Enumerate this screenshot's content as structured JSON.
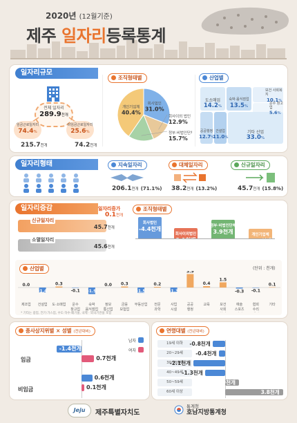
{
  "header": {
    "year": "2020년",
    "basis": "(12월기준)",
    "title_a": "제주 ",
    "title_b": "일자리",
    "title_c": "등록통계"
  },
  "scale": {
    "heading": "일자리규모",
    "total_label": "전체 일자리",
    "total_value": "289.9",
    "total_unit": "천개",
    "reg_label": "임금근로일자리",
    "reg_value": "74.4",
    "reg_unit": "%",
    "nonreg_label": "비임금근로일자리",
    "nonreg_value": "25.6",
    "nonreg_unit": "%",
    "left_total": "215.7",
    "left_unit": "천개",
    "right_total": "74.2",
    "right_unit": "천개"
  },
  "org": {
    "heading": "조직형태별",
    "slices": [
      {
        "label": "회사이외 법인",
        "value": "12.9",
        "unit": "%",
        "color": "#e8c99a",
        "pct": 12.9
      },
      {
        "label": "정부·비법인단체",
        "value": "15.7",
        "unit": "%",
        "color": "#a7d2a6",
        "pct": 15.7
      },
      {
        "label": "개인기업체",
        "value": "40.4",
        "unit": "%",
        "color": "#f4c978",
        "pct": 40.4
      },
      {
        "label": "회사법인",
        "value": "31.0",
        "unit": "%",
        "color": "#7fb1e8",
        "pct": 31.0
      }
    ]
  },
  "industry": {
    "heading": "산업별",
    "items": [
      {
        "label": "도소매업",
        "value": "14.2",
        "unit": "%"
      },
      {
        "label": "숙박·음식점업",
        "value": "13.5",
        "unit": "%"
      },
      {
        "label": "보건 사회복지",
        "value": "10.1",
        "unit": "%"
      },
      {
        "label": "운수 창고업",
        "value": "5.6",
        "unit": "%"
      },
      {
        "label": "공공행정",
        "value": "12.7",
        "unit": "%"
      },
      {
        "label": "건설업",
        "value": "11.0",
        "unit": "%"
      },
      {
        "label": "기타 산업",
        "value": "33.0",
        "unit": "%"
      }
    ]
  },
  "types": {
    "heading": "일자리형태",
    "items": [
      {
        "label": "지속일자리",
        "value": "206.1",
        "unit": "천개",
        "share": "(71.1%)"
      },
      {
        "label": "대체일자리",
        "value": "38.2",
        "unit": "천개",
        "share": "(13.2%)"
      },
      {
        "label": "신규일자리",
        "value": "45.7",
        "unit": "천개",
        "share": "(15.8%)"
      }
    ]
  },
  "change": {
    "heading": "일자리증감",
    "net_label": "일자리증가",
    "net_value": "0.1",
    "net_unit": "천개",
    "new_label": "신규일자리",
    "new_value": "45.7",
    "new_unit": "천개",
    "gone_label": "소멸일자리",
    "gone_value": "45.6",
    "gone_unit": "천개",
    "org_heading": "조직형태별",
    "org": [
      {
        "label": "회사법인",
        "value": "-4.4",
        "unit": "천개",
        "v": -4.4
      },
      {
        "label": "회사이외법인",
        "value": "2.1",
        "unit": "천개",
        "v": 2.1
      },
      {
        "label": "정부·비법인단체",
        "value": "3.9",
        "unit": "천개",
        "v": 3.9
      },
      {
        "label": "개인기업체",
        "value": "-1.4",
        "unit": "천개",
        "v": -1.4
      }
    ]
  },
  "industry_change": {
    "heading": "산업별",
    "unit_note": "(단위 : 천개)",
    "footnote": "* 기타는 광업, 전기·가스업, 수도·하수·폐기물, 국제 · 외국기관을 포함",
    "chart_data": {
      "type": "bar",
      "categories": [
        "제조업",
        "건설업",
        "도·소매업",
        "운수 창고업",
        "숙박 음식점업",
        "정보 통신업",
        "금융 보험업",
        "부동산업",
        "전문 과학 기술",
        "사업 시설",
        "공공 행정",
        "교육",
        "보건 사회 복지",
        "예술 스포츠 여가",
        "협회 수리 개인",
        "기타"
      ],
      "values": [
        0.0,
        -1.4,
        0.3,
        -0.1,
        -1.9,
        0.0,
        0.3,
        -1.5,
        0.2,
        -1.3,
        3.9,
        0.4,
        1.5,
        -0.3,
        -0.1,
        0.1
      ],
      "labels": [
        "0.0",
        "-1.4",
        "0.3",
        "-0.1",
        "-1.9",
        "0.0",
        "0.3",
        "-1.5",
        "0.2",
        "-1.3",
        "3.9",
        "0.4",
        "1.5",
        "-0.3",
        "-0.1",
        "0.1"
      ]
    }
  },
  "sex": {
    "heading": "종사상지위별 × 성별",
    "sub": "(전년대비)",
    "male": "남자",
    "female": "여자",
    "wage": "임금",
    "nonwage": "비임금",
    "values": [
      {
        "label": "-1.4",
        "unit": "천개",
        "v": -1.4
      },
      {
        "label": "0.7",
        "unit": "천개",
        "v": 0.7
      },
      {
        "label": "0.6",
        "unit": "천개",
        "v": 0.6
      },
      {
        "label": "0.1",
        "unit": "천개",
        "v": 0.1
      }
    ]
  },
  "age": {
    "heading": "연령대별",
    "sub": "(전년대비)",
    "chart_data": {
      "type": "bar",
      "categories": [
        "19세 이하",
        "20~29세",
        "30~39세",
        "40~49세",
        "50~59세",
        "60세 이상"
      ],
      "values": [
        -0.8,
        -0.4,
        -2.1,
        -1.3,
        0.9,
        3.8
      ],
      "labels": [
        "-0.8",
        "-0.4",
        "-2.1",
        "-1.3",
        "0.9",
        "3.8"
      ],
      "unit": "천개"
    }
  },
  "footer": {
    "left": "제주특별자치도",
    "logo": "Jeju",
    "right_a": "통계청",
    "right_b": "호남지방통계청"
  }
}
